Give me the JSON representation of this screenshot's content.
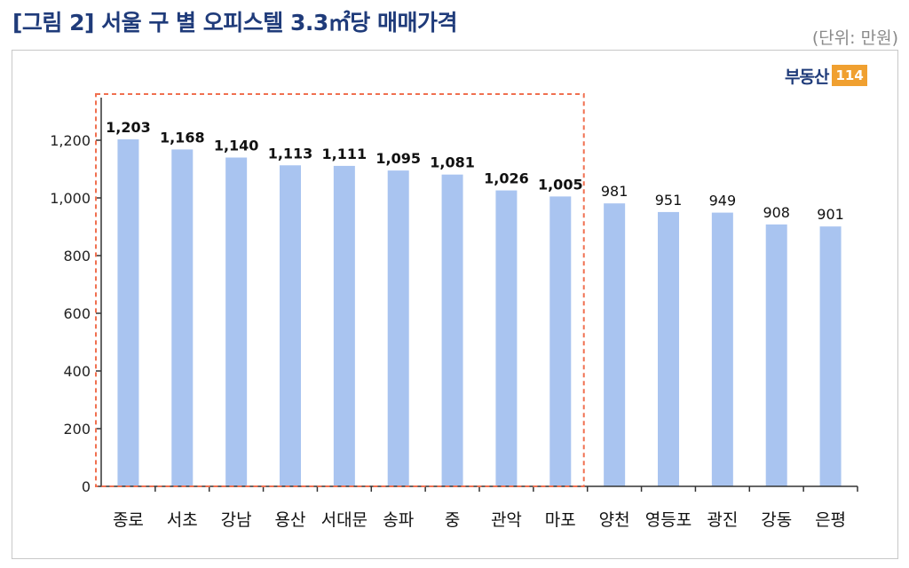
{
  "header": {
    "title": "[그림 2] 서울 구 별 오피스텔 3.3㎡당 매매가격",
    "unit": "(단위: 만원)"
  },
  "logo": {
    "text": "부동산",
    "number": "114"
  },
  "chart_data": {
    "type": "bar",
    "categories": [
      "종로",
      "서초",
      "강남",
      "용산",
      "서대문",
      "송파",
      "중",
      "관악",
      "마포",
      "양천",
      "영등포",
      "광진",
      "강동",
      "은평"
    ],
    "values": [
      1203,
      1168,
      1140,
      1113,
      1111,
      1095,
      1081,
      1026,
      1005,
      981,
      951,
      949,
      908,
      901
    ],
    "value_labels": [
      "1,203",
      "1,168",
      "1,140",
      "1,113",
      "1,111",
      "1,095",
      "1,081",
      "1,026",
      "1,005",
      "981",
      "951",
      "949",
      "908",
      "901"
    ],
    "ylim": [
      0,
      1300
    ],
    "yticks": [
      0,
      200,
      400,
      600,
      800,
      1000,
      1200
    ],
    "ytick_labels": [
      "0",
      "200",
      "400",
      "600",
      "800",
      "1,000",
      "1,200"
    ],
    "highlight_count": 9,
    "bar_color": "#a9c4f0",
    "highlight_box_color": "#f07050"
  }
}
